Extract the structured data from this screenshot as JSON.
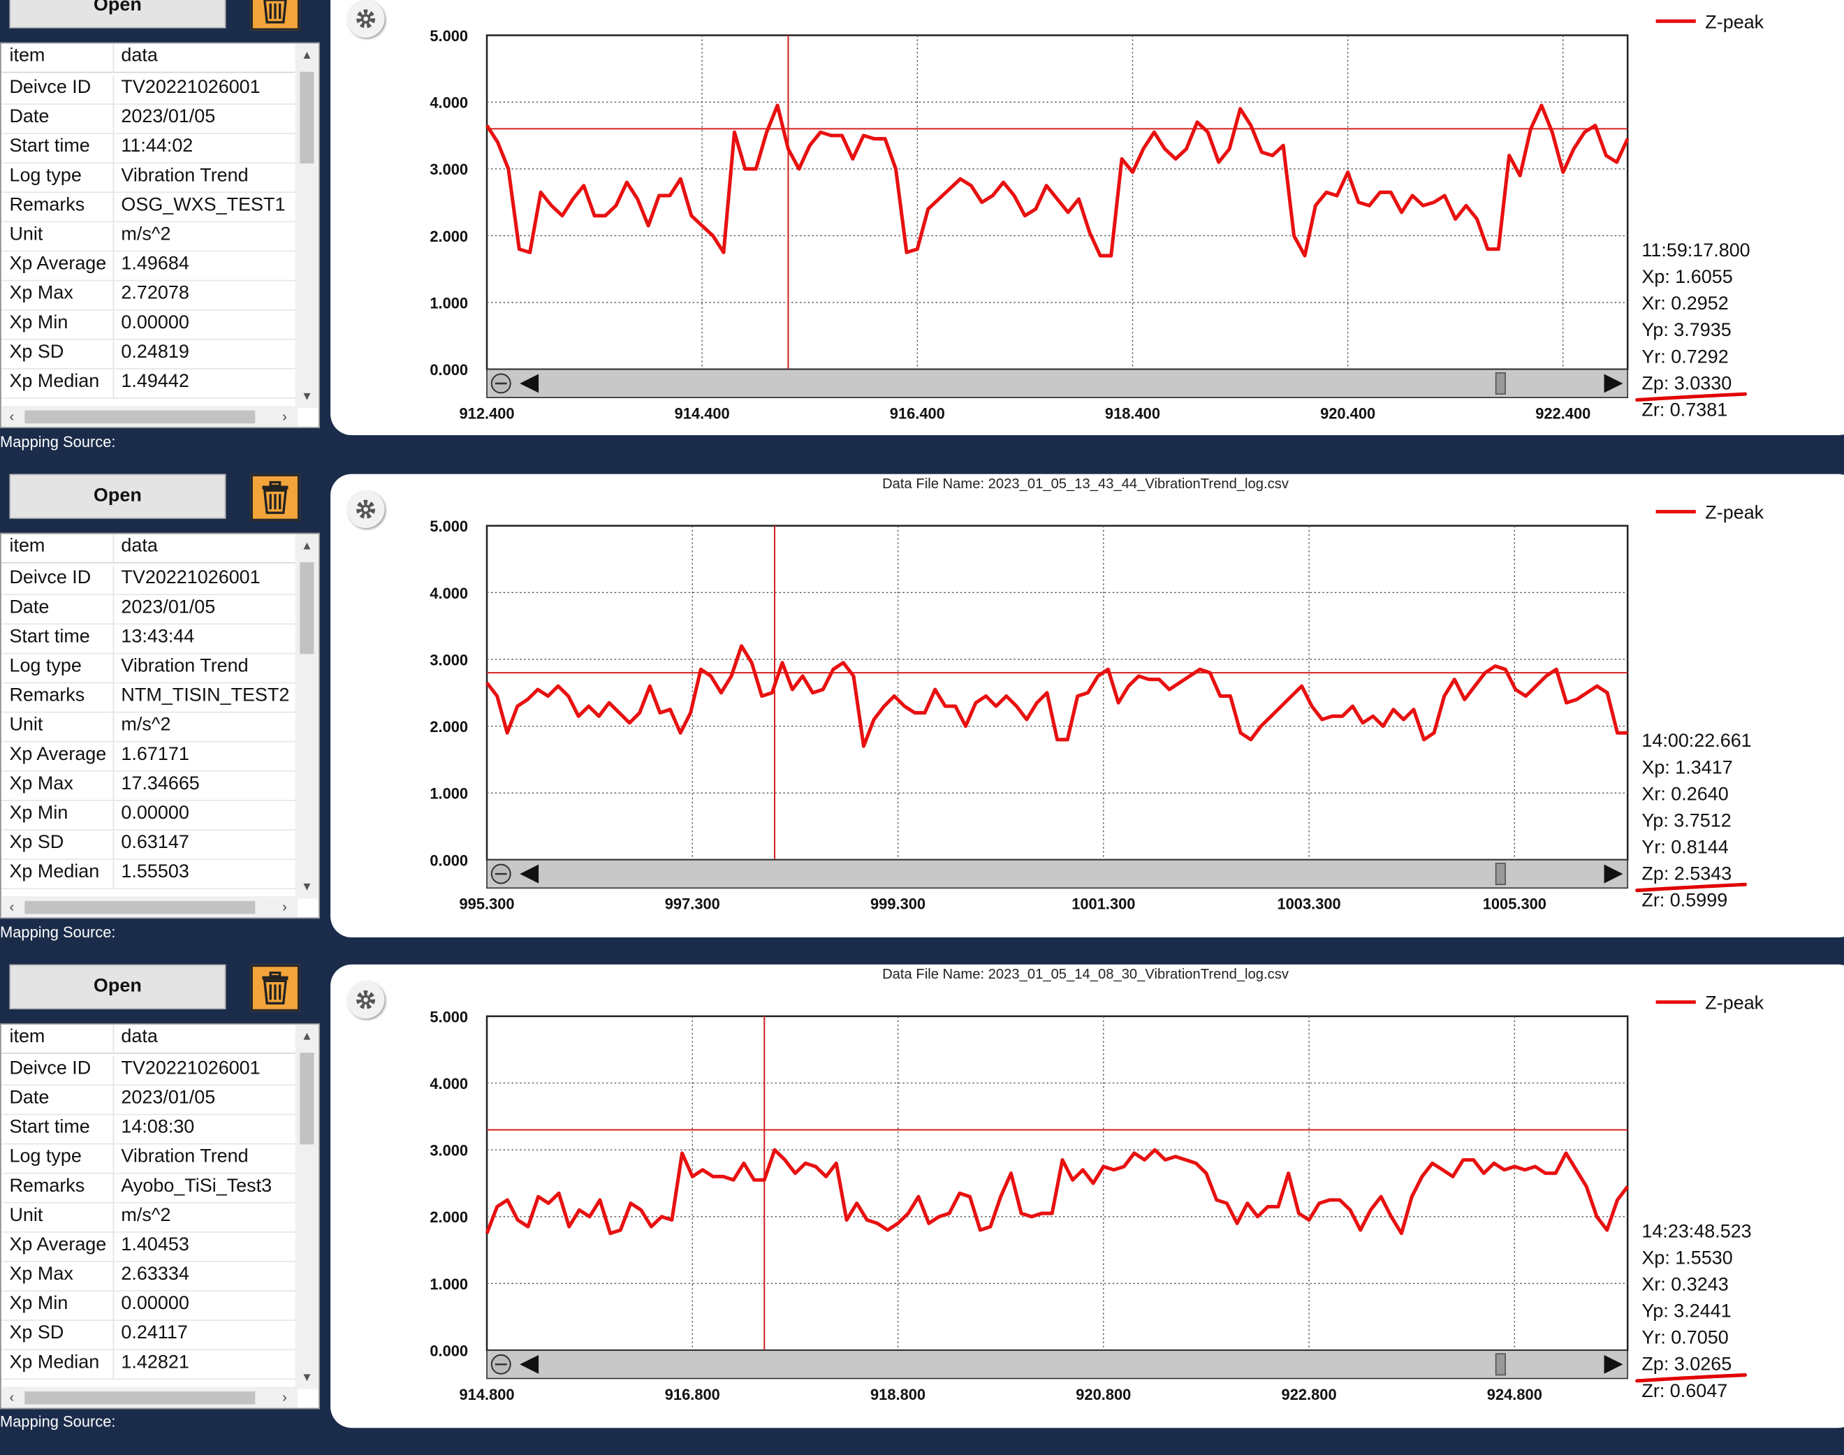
{
  "colors": {
    "panel_bg": "#1b2c4a",
    "trash": "#f3a53b",
    "series": "#e81010",
    "threshold": "#d42020"
  },
  "buttons": {
    "open_label": "Open"
  },
  "table_header": {
    "item": "item",
    "data": "data"
  },
  "mapping_label": "Mapping Source:",
  "panels": [
    {
      "file_name": "",
      "rows": [
        [
          "Deivce ID",
          "TV20221026001"
        ],
        [
          "Date",
          "2023/01/05"
        ],
        [
          "Start time",
          "11:44:02"
        ],
        [
          "Log type",
          "Vibration Trend"
        ],
        [
          "Remarks",
          "OSG_WXS_TEST1"
        ],
        [
          "Unit",
          "m/s^2"
        ],
        [
          "Xp Average",
          "1.49684"
        ],
        [
          "Xp Max",
          "2.72078"
        ],
        [
          "Xp Min",
          "0.00000"
        ],
        [
          "Xp SD",
          "0.24819"
        ],
        [
          "Xp Median",
          "1.49442"
        ]
      ],
      "readout": [
        "11:59:17.800",
        "Xp: 1.6055",
        "Xr: 0.2952",
        "Yp: 3.7935",
        "Yr: 0.7292",
        "Zp: 3.0330",
        "Zr: 0.7381"
      ]
    },
    {
      "file_name": "Data File Name: 2023_01_05_13_43_44_VibrationTrend_log.csv",
      "rows": [
        [
          "Deivce ID",
          "TV20221026001"
        ],
        [
          "Date",
          "2023/01/05"
        ],
        [
          "Start time",
          "13:43:44"
        ],
        [
          "Log type",
          "Vibration Trend"
        ],
        [
          "Remarks",
          "NTM_TISIN_TEST2"
        ],
        [
          "Unit",
          "m/s^2"
        ],
        [
          "Xp Average",
          "1.67171"
        ],
        [
          "Xp Max",
          "17.34665"
        ],
        [
          "Xp Min",
          "0.00000"
        ],
        [
          "Xp SD",
          "0.63147"
        ],
        [
          "Xp Median",
          "1.55503"
        ]
      ],
      "readout": [
        "14:00:22.661",
        "Xp: 1.3417",
        "Xr: 0.2640",
        "Yp: 3.7512",
        "Yr: 0.8144",
        "Zp: 2.5343",
        "Zr: 0.5999"
      ]
    },
    {
      "file_name": "Data File Name: 2023_01_05_14_08_30_VibrationTrend_log.csv",
      "rows": [
        [
          "Deivce ID",
          "TV20221026001"
        ],
        [
          "Date",
          "2023/01/05"
        ],
        [
          "Start time",
          "14:08:30"
        ],
        [
          "Log type",
          "Vibration Trend"
        ],
        [
          "Remarks",
          "Ayobo_TiSi_Test3"
        ],
        [
          "Unit",
          "m/s^2"
        ],
        [
          "Xp Average",
          "1.40453"
        ],
        [
          "Xp Max",
          "2.63334"
        ],
        [
          "Xp Min",
          "0.00000"
        ],
        [
          "Xp SD",
          "0.24117"
        ],
        [
          "Xp Median",
          "1.42821"
        ]
      ],
      "readout": [
        "14:23:48.523",
        "Xp: 1.5530",
        "Xr: 0.3243",
        "Yp: 3.2441",
        "Yr: 0.7050",
        "Zp: 3.0265",
        "Zr: 0.6047"
      ]
    }
  ],
  "chart_data": [
    {
      "type": "line",
      "title": "",
      "legend": "top-right",
      "grid": true,
      "xlabel": "",
      "ylabel": "",
      "ylim": [
        0,
        5
      ],
      "xlim": [
        912.4,
        923.0
      ],
      "x_ticks": [
        "912.400",
        "914.400",
        "916.400",
        "918.400",
        "920.400",
        "922.400"
      ],
      "y_ticks": [
        "0.000",
        "1.000",
        "2.000",
        "3.000",
        "4.000",
        "5.000"
      ],
      "threshold": 3.6,
      "cursor_x": 915.2,
      "series": [
        {
          "name": "Z-peak",
          "values": [
            3.65,
            3.4,
            3.0,
            1.8,
            1.75,
            2.65,
            2.45,
            2.3,
            2.55,
            2.75,
            2.3,
            2.3,
            2.45,
            2.8,
            2.55,
            2.15,
            2.6,
            2.6,
            2.85,
            2.3,
            2.15,
            2.0,
            1.75,
            3.55,
            3.0,
            3.0,
            3.55,
            3.95,
            3.3,
            3.0,
            3.35,
            3.55,
            3.5,
            3.5,
            3.15,
            3.5,
            3.45,
            3.45,
            3.0,
            1.75,
            1.8,
            2.4,
            2.55,
            2.7,
            2.85,
            2.75,
            2.5,
            2.6,
            2.8,
            2.6,
            2.3,
            2.4,
            2.75,
            2.55,
            2.35,
            2.55,
            2.05,
            1.7,
            1.7,
            3.15,
            2.95,
            3.3,
            3.55,
            3.3,
            3.15,
            3.3,
            3.7,
            3.55,
            3.1,
            3.3,
            3.9,
            3.65,
            3.25,
            3.2,
            3.35,
            2.0,
            1.7,
            2.45,
            2.65,
            2.6,
            2.95,
            2.5,
            2.45,
            2.65,
            2.65,
            2.35,
            2.6,
            2.45,
            2.5,
            2.6,
            2.25,
            2.45,
            2.25,
            1.8,
            1.8,
            3.2,
            2.9,
            3.6,
            3.95,
            3.55,
            2.95,
            3.3,
            3.55,
            3.65,
            3.2,
            3.1,
            3.45
          ]
        }
      ]
    },
    {
      "type": "line",
      "title": "Data File Name: 2023_01_05_13_43_44_VibrationTrend_log.csv",
      "legend": "top-right",
      "grid": true,
      "xlabel": "",
      "ylabel": "",
      "ylim": [
        0,
        5
      ],
      "xlim": [
        995.3,
        1006.4
      ],
      "x_ticks": [
        "995.300",
        "997.300",
        "999.300",
        "1001.300",
        "1003.300",
        "1005.300"
      ],
      "y_ticks": [
        "0.000",
        "1.000",
        "2.000",
        "3.000",
        "4.000",
        "5.000"
      ],
      "threshold": 2.8,
      "cursor_x": 998.1,
      "series": [
        {
          "name": "Z-peak",
          "values": [
            2.65,
            2.45,
            1.9,
            2.3,
            2.4,
            2.55,
            2.45,
            2.6,
            2.45,
            2.15,
            2.3,
            2.15,
            2.35,
            2.2,
            2.05,
            2.2,
            2.6,
            2.2,
            2.25,
            1.9,
            2.2,
            2.85,
            2.75,
            2.5,
            2.75,
            3.2,
            2.95,
            2.45,
            2.5,
            2.95,
            2.55,
            2.75,
            2.5,
            2.55,
            2.85,
            2.95,
            2.75,
            1.7,
            2.1,
            2.3,
            2.45,
            2.3,
            2.2,
            2.2,
            2.55,
            2.3,
            2.3,
            2.0,
            2.35,
            2.45,
            2.3,
            2.45,
            2.3,
            2.1,
            2.35,
            2.5,
            1.8,
            1.8,
            2.45,
            2.5,
            2.75,
            2.85,
            2.35,
            2.6,
            2.75,
            2.7,
            2.7,
            2.55,
            2.65,
            2.75,
            2.85,
            2.8,
            2.45,
            2.45,
            1.9,
            1.8,
            2.0,
            2.15,
            2.3,
            2.45,
            2.6,
            2.3,
            2.1,
            2.15,
            2.15,
            2.3,
            2.05,
            2.15,
            2.0,
            2.25,
            2.1,
            2.25,
            1.8,
            1.9,
            2.45,
            2.7,
            2.4,
            2.6,
            2.8,
            2.9,
            2.85,
            2.55,
            2.45,
            2.6,
            2.75,
            2.85,
            2.35,
            2.4,
            2.5,
            2.6,
            2.5,
            1.9,
            1.9
          ]
        }
      ]
    },
    {
      "type": "line",
      "title": "Data File Name: 2023_01_05_14_08_30_VibrationTrend_log.csv",
      "legend": "top-right",
      "grid": true,
      "xlabel": "",
      "ylabel": "",
      "ylim": [
        0,
        5
      ],
      "xlim": [
        914.8,
        925.9
      ],
      "x_ticks": [
        "914.800",
        "916.800",
        "918.800",
        "920.800",
        "922.800",
        "924.800"
      ],
      "y_ticks": [
        "0.000",
        "1.000",
        "2.000",
        "3.000",
        "4.000",
        "5.000"
      ],
      "threshold": 3.3,
      "cursor_x": 917.5,
      "series": [
        {
          "name": "Z-peak",
          "values": [
            1.75,
            2.15,
            2.25,
            1.95,
            1.85,
            2.3,
            2.2,
            2.35,
            1.85,
            2.1,
            2.0,
            2.25,
            1.75,
            1.8,
            2.2,
            2.1,
            1.85,
            2.0,
            1.95,
            2.95,
            2.6,
            2.7,
            2.6,
            2.6,
            2.55,
            2.8,
            2.55,
            2.55,
            3.0,
            2.85,
            2.65,
            2.8,
            2.75,
            2.6,
            2.8,
            1.95,
            2.2,
            1.95,
            1.9,
            1.8,
            1.9,
            2.05,
            2.3,
            1.9,
            2.0,
            2.05,
            2.35,
            2.3,
            1.8,
            1.85,
            2.3,
            2.65,
            2.05,
            2.0,
            2.05,
            2.05,
            2.85,
            2.55,
            2.7,
            2.5,
            2.75,
            2.7,
            2.75,
            2.95,
            2.85,
            3.0,
            2.85,
            2.9,
            2.85,
            2.8,
            2.65,
            2.25,
            2.2,
            1.9,
            2.2,
            2.0,
            2.15,
            2.15,
            2.65,
            2.05,
            1.95,
            2.2,
            2.25,
            2.25,
            2.1,
            1.8,
            2.1,
            2.3,
            2.0,
            1.75,
            2.3,
            2.6,
            2.8,
            2.7,
            2.6,
            2.85,
            2.85,
            2.65,
            2.8,
            2.7,
            2.75,
            2.7,
            2.75,
            2.65,
            2.65,
            2.95,
            2.7,
            2.45,
            2.0,
            1.8,
            2.25,
            2.45
          ]
        }
      ]
    }
  ]
}
